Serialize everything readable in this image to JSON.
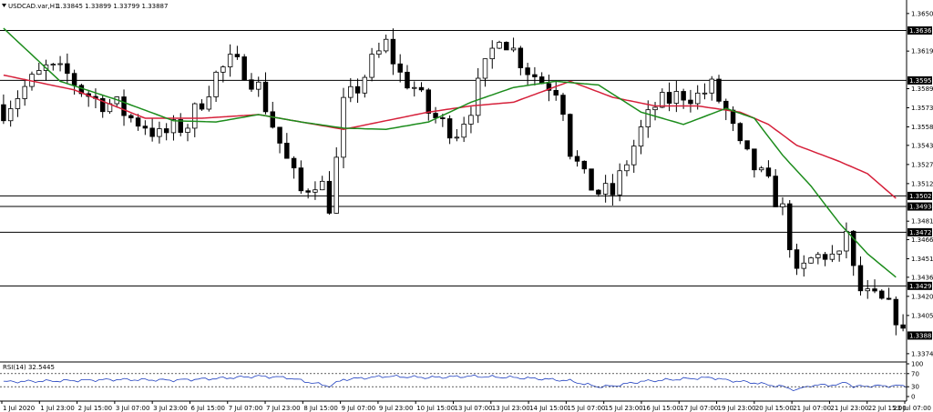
{
  "header": {
    "symbol": "USDCAD.var,H1",
    "ohlc": "1.33845 1.33899 1.33799 1.33887"
  },
  "chart_data": {
    "type": "candlestick",
    "symbol": "USDCAD.var",
    "timeframe": "H1",
    "ylim": [
      1.3368,
      1.3658
    ],
    "y_ticks": [
      1.365,
      1.36195,
      1.3589,
      1.35735,
      1.3558,
      1.3543,
      1.35275,
      1.3512,
      1.34815,
      1.34665,
      1.3451,
      1.3436,
      1.34205,
      1.3405,
      1.3374
    ],
    "x_ticks": [
      "1 Jul 2020",
      "1 Jul 23:00",
      "2 Jul 15:00",
      "3 Jul 07:00",
      "3 Jul 23:00",
      "6 Jul 15:00",
      "7 Jul 07:00",
      "7 Jul 23:00",
      "8 Jul 15:00",
      "9 Jul 07:00",
      "9 Jul 23:00",
      "10 Jul 15:00",
      "13 Jul 07:00",
      "13 Jul 23:00",
      "14 Jul 15:00",
      "15 Jul 07:00",
      "15 Jul 23:00",
      "16 Jul 15:00",
      "17 Jul 07:00",
      "19 Jul 23:00",
      "20 Jul 15:00",
      "21 Jul 07:00",
      "21 Jul 23:00",
      "22 Jul 15:00",
      "23 Jul 07:00"
    ],
    "levels": [
      {
        "value": 1.36362,
        "label": "1.36362"
      },
      {
        "value": 1.35957,
        "label": "1.35957"
      },
      {
        "value": 1.3502,
        "label": "1.35020"
      },
      {
        "value": 1.34934,
        "label": "1.34934"
      },
      {
        "value": 1.34725,
        "label": "1.34725"
      },
      {
        "value": 1.3429,
        "label": "1.34290"
      }
    ],
    "last_price": {
      "value": 1.33887,
      "label": "1.33887"
    },
    "close_path": [
      [
        0,
        1.3572
      ],
      [
        3,
        1.359
      ],
      [
        6,
        1.3605
      ],
      [
        9,
        1.36
      ],
      [
        11,
        1.3588
      ],
      [
        13,
        1.358
      ],
      [
        16,
        1.3575
      ],
      [
        18,
        1.3565
      ],
      [
        20,
        1.356
      ],
      [
        22,
        1.355
      ],
      [
        24,
        1.3556
      ],
      [
        26,
        1.356
      ],
      [
        28,
        1.358
      ],
      [
        30,
        1.36
      ],
      [
        32,
        1.361
      ],
      [
        34,
        1.3605
      ],
      [
        36,
        1.359
      ],
      [
        38,
        1.356
      ],
      [
        40,
        1.353
      ],
      [
        42,
        1.3505
      ],
      [
        44,
        1.3515
      ],
      [
        45,
        1.351
      ],
      [
        46,
        1.3495
      ],
      [
        47,
        1.353
      ],
      [
        48,
        1.3575
      ],
      [
        50,
        1.359
      ],
      [
        52,
        1.361
      ],
      [
        54,
        1.3625
      ],
      [
        56,
        1.36
      ],
      [
        58,
        1.359
      ],
      [
        60,
        1.357
      ],
      [
        62,
        1.356
      ],
      [
        64,
        1.3555
      ],
      [
        66,
        1.3575
      ],
      [
        68,
        1.3605
      ],
      [
        70,
        1.3635
      ],
      [
        72,
        1.362
      ],
      [
        74,
        1.3605
      ],
      [
        76,
        1.3595
      ],
      [
        78,
        1.359
      ],
      [
        79,
        1.3575
      ],
      [
        80,
        1.354
      ],
      [
        82,
        1.3515
      ],
      [
        84,
        1.3505
      ],
      [
        86,
        1.3504
      ],
      [
        88,
        1.353
      ],
      [
        90,
        1.3555
      ],
      [
        92,
        1.3575
      ],
      [
        94,
        1.358
      ],
      [
        96,
        1.3585
      ],
      [
        98,
        1.3583
      ],
      [
        100,
        1.359
      ],
      [
        102,
        1.357
      ],
      [
        104,
        1.354
      ],
      [
        106,
        1.3525
      ],
      [
        108,
        1.351
      ],
      [
        110,
        1.349
      ],
      [
        111,
        1.3465
      ],
      [
        112,
        1.3435
      ],
      [
        114,
        1.345
      ],
      [
        116,
        1.3455
      ],
      [
        118,
        1.345
      ],
      [
        119,
        1.3475
      ],
      [
        120,
        1.344
      ],
      [
        121,
        1.3425
      ],
      [
        122,
        1.342
      ],
      [
        124,
        1.3415
      ],
      [
        126,
        1.3405
      ],
      [
        127,
        1.3388
      ]
    ],
    "ma_green": [
      [
        0,
        1.3638
      ],
      [
        8,
        1.3595
      ],
      [
        16,
        1.358
      ],
      [
        24,
        1.3563
      ],
      [
        30,
        1.3562
      ],
      [
        36,
        1.3568
      ],
      [
        42,
        1.3562
      ],
      [
        48,
        1.3557
      ],
      [
        54,
        1.3556
      ],
      [
        60,
        1.3562
      ],
      [
        66,
        1.3578
      ],
      [
        72,
        1.359
      ],
      [
        78,
        1.3595
      ],
      [
        84,
        1.3592
      ],
      [
        90,
        1.357
      ],
      [
        96,
        1.356
      ],
      [
        102,
        1.3573
      ],
      [
        106,
        1.3565
      ],
      [
        110,
        1.3535
      ],
      [
        114,
        1.351
      ],
      [
        118,
        1.348
      ],
      [
        122,
        1.3455
      ],
      [
        126,
        1.3436
      ]
    ],
    "ma_red": [
      [
        0,
        1.36
      ],
      [
        10,
        1.3588
      ],
      [
        20,
        1.3565
      ],
      [
        28,
        1.3565
      ],
      [
        36,
        1.3568
      ],
      [
        42,
        1.3562
      ],
      [
        48,
        1.3556
      ],
      [
        54,
        1.3563
      ],
      [
        60,
        1.357
      ],
      [
        66,
        1.3575
      ],
      [
        72,
        1.3578
      ],
      [
        80,
        1.3595
      ],
      [
        86,
        1.3582
      ],
      [
        92,
        1.3575
      ],
      [
        98,
        1.3575
      ],
      [
        104,
        1.357
      ],
      [
        108,
        1.356
      ],
      [
        112,
        1.3543
      ],
      [
        118,
        1.353
      ],
      [
        122,
        1.352
      ],
      [
        126,
        1.35
      ]
    ],
    "rsi": {
      "label": "RSI(14) 32.5445",
      "levels": [
        70,
        30
      ],
      "ylim": [
        0,
        100
      ],
      "ticks": [
        100,
        70,
        30,
        0
      ],
      "path": [
        [
          0,
          45
        ],
        [
          8,
          48
        ],
        [
          16,
          52
        ],
        [
          24,
          50
        ],
        [
          30,
          55
        ],
        [
          36,
          62
        ],
        [
          40,
          58
        ],
        [
          44,
          40
        ],
        [
          46,
          32
        ],
        [
          48,
          52
        ],
        [
          54,
          62
        ],
        [
          60,
          58
        ],
        [
          66,
          62
        ],
        [
          72,
          58
        ],
        [
          76,
          54
        ],
        [
          80,
          48
        ],
        [
          82,
          38
        ],
        [
          84,
          30
        ],
        [
          86,
          32
        ],
        [
          90,
          46
        ],
        [
          96,
          54
        ],
        [
          100,
          58
        ],
        [
          102,
          50
        ],
        [
          106,
          42
        ],
        [
          110,
          30
        ],
        [
          112,
          20
        ],
        [
          114,
          34
        ],
        [
          118,
          36
        ],
        [
          119,
          45
        ],
        [
          120,
          30
        ],
        [
          122,
          32
        ],
        [
          126,
          33
        ],
        [
          127,
          32
        ]
      ]
    }
  }
}
